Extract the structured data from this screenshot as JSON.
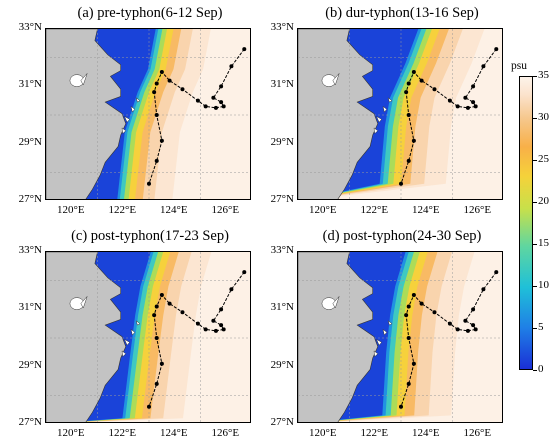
{
  "chart_data": {
    "type": "heatmap",
    "variable_unit": "psu",
    "colorbar": {
      "min": 0,
      "max": 35,
      "ticks": [
        0,
        5,
        10,
        15,
        20,
        25,
        30,
        35
      ]
    },
    "lat_ticks": [
      "27°N",
      "29°N",
      "31°N",
      "33°N"
    ],
    "lon_ticks": [
      "120°E",
      "122°E",
      "124°E",
      "126°E"
    ],
    "xlim": [
      119,
      127
    ],
    "ylim": [
      27,
      33
    ],
    "panels": [
      {
        "title": "(a) pre-typhon(6-12 Sep)"
      },
      {
        "title": "(b) dur-typhon(13-16 Sep)"
      },
      {
        "title": "(c) post-typhon(17-23 Sep)"
      },
      {
        "title": "(d) post-typhon(24-30 Sep)"
      }
    ],
    "track": [
      [
        126.7,
        32.3
      ],
      [
        126.2,
        31.7
      ],
      [
        125.8,
        31.0
      ],
      [
        125.5,
        30.6
      ],
      [
        125.8,
        30.45
      ],
      [
        125.9,
        30.3
      ],
      [
        125.6,
        30.25
      ],
      [
        125.2,
        30.3
      ],
      [
        124.9,
        30.5
      ],
      [
        124.3,
        30.9
      ],
      [
        123.8,
        31.2
      ],
      [
        123.5,
        31.5
      ],
      [
        123.3,
        31.1
      ],
      [
        123.2,
        30.8
      ],
      [
        123.3,
        30.0
      ],
      [
        123.5,
        29.1
      ],
      [
        123.3,
        28.4
      ],
      [
        123.0,
        27.6
      ]
    ],
    "grid": true
  }
}
